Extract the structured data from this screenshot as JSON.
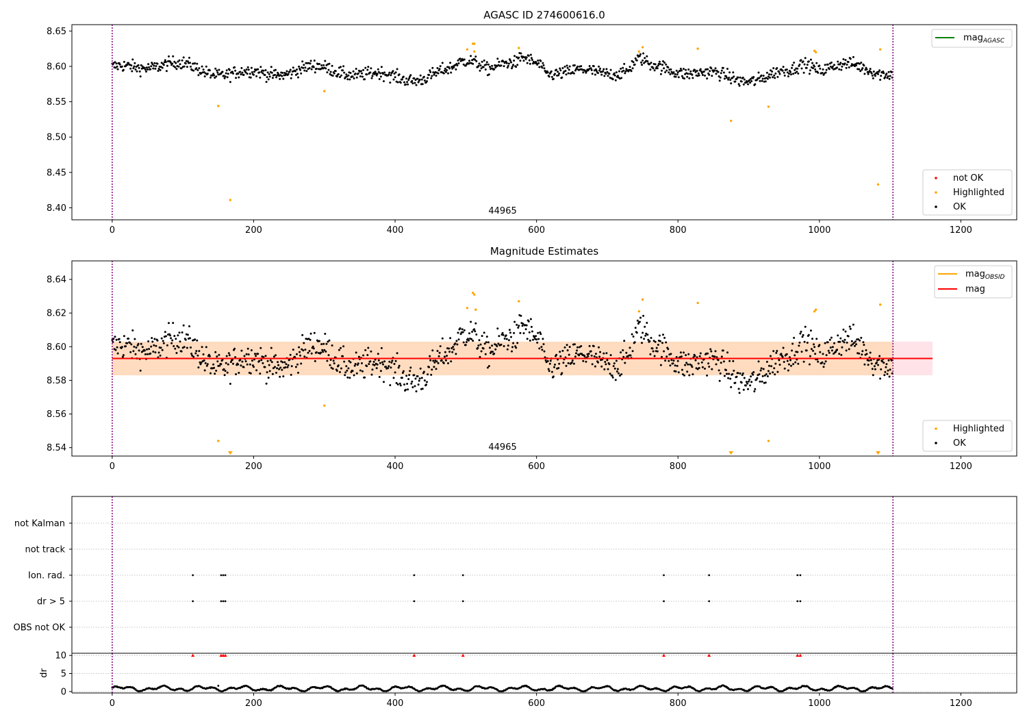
{
  "colors": {
    "ok": "#000000",
    "highlighted": "#ffa500",
    "not_ok": "#ff0000",
    "mag_agasc_line": "#008000",
    "mag_obsid_line": "#ffa500",
    "mag_line": "#ff0000",
    "band_outer": "#ffc0cb",
    "band_inner": "#ffdab9",
    "obsid_boundary": "#800080",
    "grid": "#b0b0b0"
  },
  "chart_data": [
    {
      "id": "agasc",
      "type": "scatter",
      "title": "AGASC ID 274600616.0",
      "xlim": [
        -57,
        1279
      ],
      "ylim": [
        8.383,
        8.659
      ],
      "xticks": [
        0,
        200,
        400,
        600,
        800,
        1000,
        1200
      ],
      "xtick_labels": [
        "0",
        "200",
        "400",
        "600",
        "800",
        "1000",
        "1200"
      ],
      "yticks": [
        8.4,
        8.45,
        8.5,
        8.55,
        8.6,
        8.65
      ],
      "ytick_labels": [
        "8.40",
        "8.45",
        "8.50",
        "8.55",
        "8.60",
        "8.65"
      ],
      "obsid_boundaries": [
        0,
        1104
      ],
      "obsid_label": "44965",
      "obsid_label_x": 552,
      "line_legend": [
        {
          "label_main": "mag",
          "label_sub": "AGASC",
          "color_key": "mag_agasc_line"
        }
      ],
      "point_legend": [
        {
          "label": "not OK",
          "color_key": "not_ok"
        },
        {
          "label": "Highlighted",
          "color_key": "highlighted"
        },
        {
          "label": "OK",
          "color_key": "ok"
        }
      ],
      "series_generated": {
        "name": "OK",
        "n": 1104,
        "center": 8.593,
        "note": "dense black points 8.57–8.62"
      },
      "highlighted": [
        [
          150,
          8.544
        ],
        [
          167,
          8.411
        ],
        [
          300,
          8.565
        ],
        [
          502,
          8.624
        ],
        [
          510,
          8.632
        ],
        [
          512,
          8.632
        ],
        [
          512,
          8.621
        ],
        [
          575,
          8.626
        ],
        [
          745,
          8.621
        ],
        [
          750,
          8.627
        ],
        [
          828,
          8.625
        ],
        [
          875,
          8.523
        ],
        [
          928,
          8.543
        ],
        [
          993,
          8.622
        ],
        [
          995,
          8.62
        ],
        [
          1083,
          8.433
        ],
        [
          1086,
          8.624
        ]
      ]
    },
    {
      "id": "magest",
      "type": "scatter",
      "title": "Magnitude Estimates",
      "xlim": [
        -57,
        1279
      ],
      "ylim": [
        8.535,
        8.651
      ],
      "xticks": [
        0,
        200,
        400,
        600,
        800,
        1000,
        1200
      ],
      "xtick_labels": [
        "0",
        "200",
        "400",
        "600",
        "800",
        "1000",
        "1200"
      ],
      "yticks": [
        8.54,
        8.56,
        8.58,
        8.6,
        8.62,
        8.64
      ],
      "ytick_labels": [
        "8.54",
        "8.56",
        "8.58",
        "8.60",
        "8.62",
        "8.64"
      ],
      "obsid_boundaries": [
        0,
        1104
      ],
      "obsid_label": "44965",
      "obsid_label_x": 552,
      "mag": 8.593,
      "mag_band": [
        8.583,
        8.603
      ],
      "band_x": [
        0,
        1160
      ],
      "line_legend": [
        {
          "label_main": "mag",
          "label_sub": "OBSID",
          "color_key": "mag_obsid_line"
        },
        {
          "label_main": "mag",
          "label_sub": "",
          "color_key": "mag_line"
        }
      ],
      "point_legend": [
        {
          "label": "Highlighted",
          "color_key": "highlighted"
        },
        {
          "label": "OK",
          "color_key": "ok"
        }
      ],
      "highlighted": [
        [
          150,
          8.544
        ],
        [
          300,
          8.565
        ],
        [
          502,
          8.623
        ],
        [
          510,
          8.632
        ],
        [
          512,
          8.631
        ],
        [
          514,
          8.622
        ],
        [
          575,
          8.627
        ],
        [
          745,
          8.621
        ],
        [
          750,
          8.628
        ],
        [
          828,
          8.626
        ],
        [
          928,
          8.544
        ],
        [
          993,
          8.621
        ],
        [
          995,
          8.622
        ],
        [
          1086,
          8.625
        ]
      ],
      "below_range_markers": [
        167,
        875,
        1083
      ]
    },
    {
      "id": "flags",
      "type": "scatter",
      "categories": [
        "not Kalman",
        "not track",
        "Ion. rad.",
        "dr > 5",
        "OBS not OK"
      ],
      "xlim": [
        -57,
        1279
      ],
      "obsid_boundaries": [
        0,
        1104
      ],
      "flag_x": [
        114,
        154,
        157,
        160,
        427,
        496,
        780,
        844,
        969,
        973
      ],
      "flag_rows": [
        "Ion. rad.",
        "dr > 5"
      ]
    },
    {
      "id": "dr",
      "type": "scatter",
      "ylabel": "dr",
      "xlim": [
        -57,
        1279
      ],
      "ylim": [
        -0.4,
        10.6
      ],
      "xticks": [
        0,
        200,
        400,
        600,
        800,
        1000,
        1200
      ],
      "xtick_labels": [
        "0",
        "200",
        "400",
        "600",
        "800",
        "1000",
        "1200"
      ],
      "yticks": [
        0,
        5,
        10
      ],
      "ytick_labels": [
        "0",
        "5",
        "10"
      ],
      "obsid_boundaries": [
        0,
        1104
      ],
      "clipped_x": [
        114,
        154,
        157,
        160,
        427,
        496,
        780,
        844,
        969,
        973
      ],
      "clip_value": 10
    }
  ]
}
